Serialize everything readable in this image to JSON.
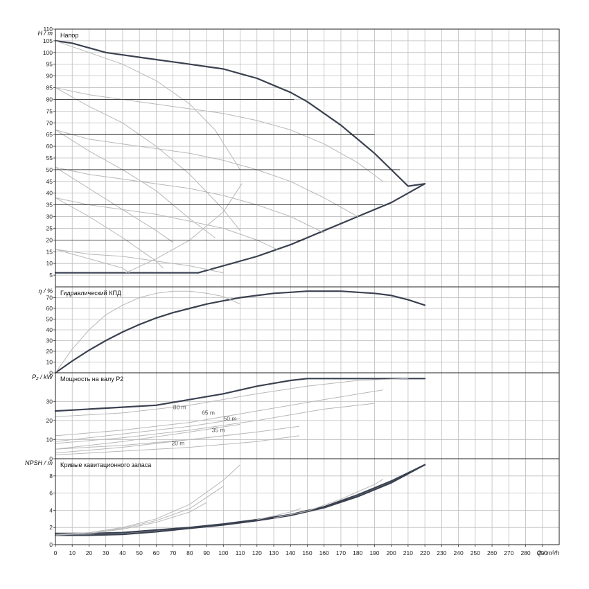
{
  "chart_data": [
    {
      "type": "line",
      "title": "Напор",
      "ylabel": "H / m",
      "xlim": [
        0,
        300
      ],
      "ylim": [
        0,
        110
      ],
      "yticks": [
        5,
        10,
        15,
        20,
        25,
        30,
        35,
        40,
        45,
        50,
        55,
        60,
        65,
        70,
        75,
        80,
        85,
        90,
        95,
        100,
        105,
        110
      ],
      "grid": true,
      "series": [
        {
          "style": "envelope",
          "x": [
            0,
            10,
            20,
            30,
            40,
            50,
            60,
            70,
            80,
            90,
            100,
            110,
            120,
            130,
            140,
            150,
            160,
            170,
            180,
            190,
            200,
            210,
            220
          ],
          "values": [
            105,
            104,
            102,
            100,
            99,
            98,
            97,
            96,
            95,
            94,
            93,
            91,
            89,
            86,
            83,
            79,
            74,
            69,
            63,
            57,
            50,
            43,
            44
          ]
        },
        {
          "style": "envelope",
          "x": [
            0,
            85
          ],
          "values": [
            6,
            6
          ]
        },
        {
          "style": "envelope",
          "x": [
            85,
            100,
            120,
            140,
            160,
            180,
            200,
            220
          ],
          "values": [
            6,
            9,
            13,
            18,
            24,
            30,
            36,
            44
          ]
        },
        {
          "style": "operating",
          "x": [
            0,
            20,
            40,
            60,
            80,
            100,
            120,
            140,
            160,
            180,
            195
          ],
          "values": [
            85,
            82,
            80,
            78,
            76,
            74,
            71,
            67,
            61,
            53,
            45
          ]
        },
        {
          "style": "operating",
          "x": [
            0,
            20,
            40,
            60,
            80,
            100,
            120,
            140,
            160,
            180
          ],
          "values": [
            67,
            63,
            61,
            59,
            57,
            54,
            50,
            45,
            38,
            30
          ]
        },
        {
          "style": "operating",
          "x": [
            0,
            20,
            40,
            60,
            80,
            100,
            120,
            140,
            160
          ],
          "values": [
            51,
            48,
            46,
            44,
            42,
            39,
            35,
            30,
            23
          ]
        },
        {
          "style": "operating",
          "x": [
            0,
            20,
            40,
            60,
            80,
            100,
            120,
            132
          ],
          "values": [
            38,
            35,
            33,
            31,
            28,
            25,
            20,
            16
          ]
        },
        {
          "style": "operating",
          "x": [
            0,
            20,
            40,
            60,
            80,
            100
          ],
          "values": [
            16,
            14,
            13,
            11,
            9,
            6
          ]
        },
        {
          "style": "operating",
          "x": [
            0,
            20,
            40,
            60,
            80,
            95,
            110
          ],
          "values": [
            105,
            100,
            95,
            88,
            78,
            67,
            50
          ]
        },
        {
          "style": "operating",
          "x": [
            0,
            20,
            40,
            60,
            80,
            100,
            110
          ],
          "values": [
            85,
            77,
            70,
            60,
            48,
            33,
            24
          ]
        },
        {
          "style": "operating",
          "x": [
            0,
            20,
            40,
            60,
            80,
            95
          ],
          "values": [
            67,
            58,
            50,
            41,
            29,
            21
          ]
        },
        {
          "style": "operating",
          "x": [
            0,
            20,
            40,
            60,
            70
          ],
          "values": [
            51,
            42,
            33,
            24,
            19
          ]
        },
        {
          "style": "operating",
          "x": [
            0,
            20,
            40,
            60,
            64
          ],
          "values": [
            38,
            30,
            21,
            11,
            8
          ]
        },
        {
          "style": "operating",
          "x": [
            0,
            20,
            40,
            44
          ],
          "values": [
            16,
            12,
            8,
            6
          ]
        },
        {
          "style": "operating",
          "x": [
            42,
            60,
            80,
            100,
            111
          ],
          "values": [
            6,
            12,
            20,
            32,
            44
          ]
        },
        {
          "style": "grid-line",
          "x": [
            0,
            142
          ],
          "values": [
            80,
            80
          ]
        },
        {
          "style": "grid-line",
          "x": [
            0,
            190
          ],
          "values": [
            65,
            65
          ]
        },
        {
          "style": "grid-line",
          "x": [
            0,
            205
          ],
          "values": [
            50,
            50
          ]
        },
        {
          "style": "grid-line",
          "x": [
            0,
            195
          ],
          "values": [
            35,
            35
          ]
        },
        {
          "style": "grid-line",
          "x": [
            0,
            148
          ],
          "values": [
            20,
            20
          ]
        }
      ]
    },
    {
      "type": "line",
      "title": "Гидравлический КПД",
      "ylabel": "η / %",
      "xlim": [
        0,
        300
      ],
      "ylim": [
        0,
        80
      ],
      "yticks": [
        0,
        10,
        20,
        30,
        40,
        50,
        60,
        70
      ],
      "grid": true,
      "series": [
        {
          "style": "envelope",
          "x": [
            0,
            10,
            20,
            30,
            40,
            50,
            60,
            70,
            80,
            90,
            100,
            110,
            120,
            130,
            140,
            150,
            160,
            170,
            180,
            190,
            200,
            210,
            220
          ],
          "values": [
            0,
            11,
            21,
            30,
            38,
            45,
            51,
            56,
            60,
            64,
            67,
            70,
            72,
            74,
            75,
            76,
            76,
            76,
            75,
            74,
            72,
            68,
            63
          ]
        },
        {
          "style": "operating",
          "x": [
            0,
            10,
            20,
            30,
            40,
            50,
            60,
            70,
            80,
            90,
            100,
            110
          ],
          "values": [
            0,
            22,
            40,
            54,
            63,
            70,
            74,
            76,
            76,
            74,
            71,
            64
          ]
        }
      ]
    },
    {
      "type": "line",
      "title": "Мощность на валу P2",
      "ylabel": "P₂ / kW",
      "xlim": [
        0,
        300
      ],
      "ylim": [
        0,
        45
      ],
      "yticks": [
        0,
        10,
        20,
        30
      ],
      "grid": true,
      "annotations": [
        {
          "text": "80 m",
          "x": 74,
          "y": 26
        },
        {
          "text": "65 m",
          "x": 91,
          "y": 23
        },
        {
          "text": "50 m",
          "x": 104,
          "y": 20
        },
        {
          "text": "35 m",
          "x": 97,
          "y": 14
        },
        {
          "text": "20 m",
          "x": 73,
          "y": 7
        }
      ],
      "series": [
        {
          "style": "envelope",
          "x": [
            0,
            20,
            40,
            60,
            80,
            100,
            120,
            140,
            150,
            160,
            180,
            200,
            220
          ],
          "values": [
            25,
            26,
            27,
            28,
            31,
            34,
            38,
            41,
            42,
            42,
            42,
            42,
            42
          ]
        },
        {
          "style": "operating",
          "x": [
            0,
            40,
            80,
            120,
            150,
            180,
            210
          ],
          "values": [
            22,
            24,
            28,
            34,
            38,
            41,
            42
          ]
        },
        {
          "style": "operating",
          "x": [
            0,
            40,
            80,
            120,
            160,
            195
          ],
          "values": [
            12,
            15,
            19,
            25,
            31,
            36
          ]
        },
        {
          "style": "operating",
          "x": [
            0,
            40,
            80,
            120,
            160,
            190
          ],
          "values": [
            8,
            11,
            15,
            20,
            26,
            29
          ]
        },
        {
          "style": "operating",
          "x": [
            0,
            40,
            80,
            120,
            145
          ],
          "values": [
            5,
            7,
            10,
            14,
            17
          ]
        },
        {
          "style": "operating",
          "x": [
            0,
            40,
            80,
            120,
            145
          ],
          "values": [
            2,
            4,
            6,
            9,
            12
          ]
        },
        {
          "style": "operating",
          "x": [
            0,
            40,
            80,
            110
          ],
          "values": [
            5,
            9,
            14,
            18
          ]
        },
        {
          "style": "operating",
          "x": [
            0,
            40,
            80,
            110
          ],
          "values": [
            3,
            6,
            10,
            13
          ]
        },
        {
          "style": "operating",
          "x": [
            0,
            40,
            80,
            110
          ],
          "values": [
            9,
            13,
            17,
            21
          ]
        }
      ]
    },
    {
      "type": "line",
      "title": "Кривые кавитационного запаса",
      "ylabel": "NPSH / m",
      "xlabel": "Q / m³/h",
      "xlim": [
        0,
        300
      ],
      "ylim": [
        0,
        10
      ],
      "yticks": [
        0,
        2,
        4,
        6,
        8
      ],
      "xticks": [
        0,
        10,
        20,
        30,
        40,
        50,
        60,
        70,
        80,
        90,
        100,
        110,
        120,
        130,
        140,
        150,
        160,
        170,
        180,
        190,
        200,
        210,
        220,
        230,
        240,
        250,
        260,
        270,
        280,
        290
      ],
      "grid": true,
      "series": [
        {
          "style": "envelope",
          "x": [
            0,
            20,
            40,
            60,
            80,
            100,
            120,
            140,
            160,
            180,
            200,
            220
          ],
          "values": [
            1.1,
            1.1,
            1.2,
            1.5,
            1.9,
            2.3,
            2.8,
            3.4,
            4.3,
            5.6,
            7.2,
            9.3
          ]
        },
        {
          "style": "envelope",
          "x": [
            0,
            20,
            40,
            60,
            80,
            100,
            120,
            140,
            160,
            180,
            200,
            220
          ],
          "values": [
            1.3,
            1.3,
            1.4,
            1.7,
            2.0,
            2.4,
            2.9,
            3.5,
            4.4,
            5.8,
            7.4,
            9.3
          ]
        },
        {
          "style": "operating",
          "x": [
            0,
            20,
            40,
            60,
            80,
            100,
            110
          ],
          "values": [
            1.2,
            1.4,
            2.0,
            3.0,
            4.7,
            7.5,
            9.3
          ]
        },
        {
          "style": "operating",
          "x": [
            0,
            20,
            40,
            60,
            80,
            100
          ],
          "values": [
            1.2,
            1.3,
            1.9,
            2.8,
            4.2,
            6.8
          ]
        },
        {
          "style": "operating",
          "x": [
            0,
            20,
            40,
            60,
            80,
            90
          ],
          "values": [
            1.1,
            1.3,
            1.8,
            2.6,
            3.8,
            4.9
          ]
        },
        {
          "style": "operating",
          "x": [
            130,
            150,
            170,
            190,
            195
          ],
          "values": [
            3.1,
            3.9,
            5.3,
            7.0,
            7.6
          ]
        },
        {
          "style": "operating",
          "x": [
            120,
            140,
            146
          ],
          "values": [
            2.9,
            3.8,
            4.2
          ]
        }
      ]
    }
  ]
}
